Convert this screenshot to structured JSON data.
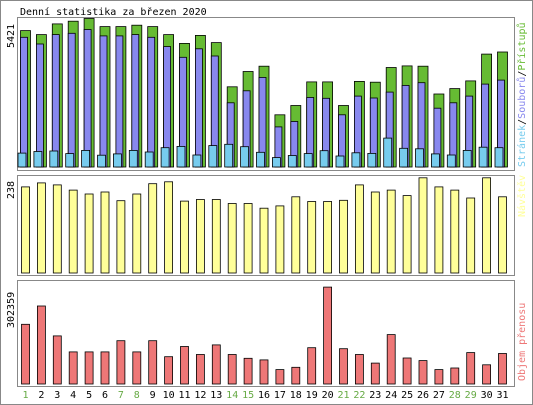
{
  "chart_data": {
    "type": "bar",
    "title": "Denní statistika za březen 2020",
    "categories": [
      "1",
      "2",
      "3",
      "4",
      "5",
      "6",
      "7",
      "8",
      "9",
      "10",
      "11",
      "12",
      "13",
      "14",
      "15",
      "16",
      "17",
      "18",
      "19",
      "20",
      "21",
      "22",
      "23",
      "24",
      "25",
      "26",
      "27",
      "28",
      "29",
      "30",
      "31"
    ],
    "weekend_days": [
      "1",
      "7",
      "8",
      "14",
      "15",
      "21",
      "22",
      "28",
      "29"
    ],
    "panels": [
      {
        "name": "hits",
        "ymax_label": "5421",
        "ymax": 5421,
        "series": [
          {
            "name": "Přístupů",
            "color": "#66bb33",
            "values": [
              5100,
              4950,
              5350,
              5450,
              5550,
              5250,
              5250,
              5300,
              5250,
              4950,
              4620,
              4920,
              4650,
              3000,
              3570,
              3770,
              1950,
              2300,
              3180,
              3180,
              2300,
              3200,
              3170,
              3720,
              3780,
              3770,
              2730,
              2930,
              3220,
              4220,
              4300
            ]
          },
          {
            "name": "Souborů",
            "color": "#8888ee",
            "values": [
              4850,
              4600,
              4950,
              5000,
              5140,
              4900,
              4900,
              4950,
              4850,
              4500,
              4100,
              4420,
              4150,
              2400,
              2850,
              3350,
              1500,
              1700,
              2600,
              2570,
              1950,
              2650,
              2580,
              2800,
              3050,
              3150,
              2200,
              2400,
              2650,
              3100,
              3250
            ]
          },
          {
            "name": "Stránek",
            "color": "#77ccee",
            "values": [
              520,
              580,
              600,
              500,
              620,
              440,
              490,
              620,
              560,
              720,
              770,
              450,
              800,
              850,
              760,
              550,
              350,
              430,
              500,
              610,
              410,
              530,
              510,
              1080,
              700,
              680,
              490,
              450,
              620,
              740,
              720
            ]
          }
        ]
      },
      {
        "name": "visits",
        "ymax_label": "238",
        "ymax": 238,
        "series": [
          {
            "name": "Návštěv",
            "color": "#ffff99",
            "values": [
              218,
              228,
              223,
              210,
              200,
              205,
              183,
              200,
              226,
              231,
              182,
              186,
              186,
              176,
              176,
              164,
              170,
              193,
              181,
              181,
              184,
              223,
              205,
              210,
              196,
              241,
              218,
              210,
              190,
              241,
              193
            ]
          }
        ]
      },
      {
        "name": "volume",
        "ymax_label": "302359",
        "ymax": 302359,
        "series": [
          {
            "name": "Objem přenosu",
            "color": "#ee7777",
            "values": [
              186000,
              243000,
              150000,
              100000,
              100000,
              100000,
              135000,
              100000,
              135000,
              85000,
              117000,
              92000,
              122000,
              92000,
              80000,
              75000,
              45000,
              52000,
              113000,
              302000,
              110000,
              92000,
              65000,
              154000,
              81000,
              73000,
              45000,
              50000,
              98000,
              60000,
              95000
            ]
          }
        ]
      }
    ],
    "side_labels": [
      "Stránek",
      "/",
      "Souborů",
      "/",
      "Přístupů"
    ],
    "colors": {
      "weekend": "#66aa44",
      "weekday": "#000000",
      "frame": "#888888"
    }
  }
}
